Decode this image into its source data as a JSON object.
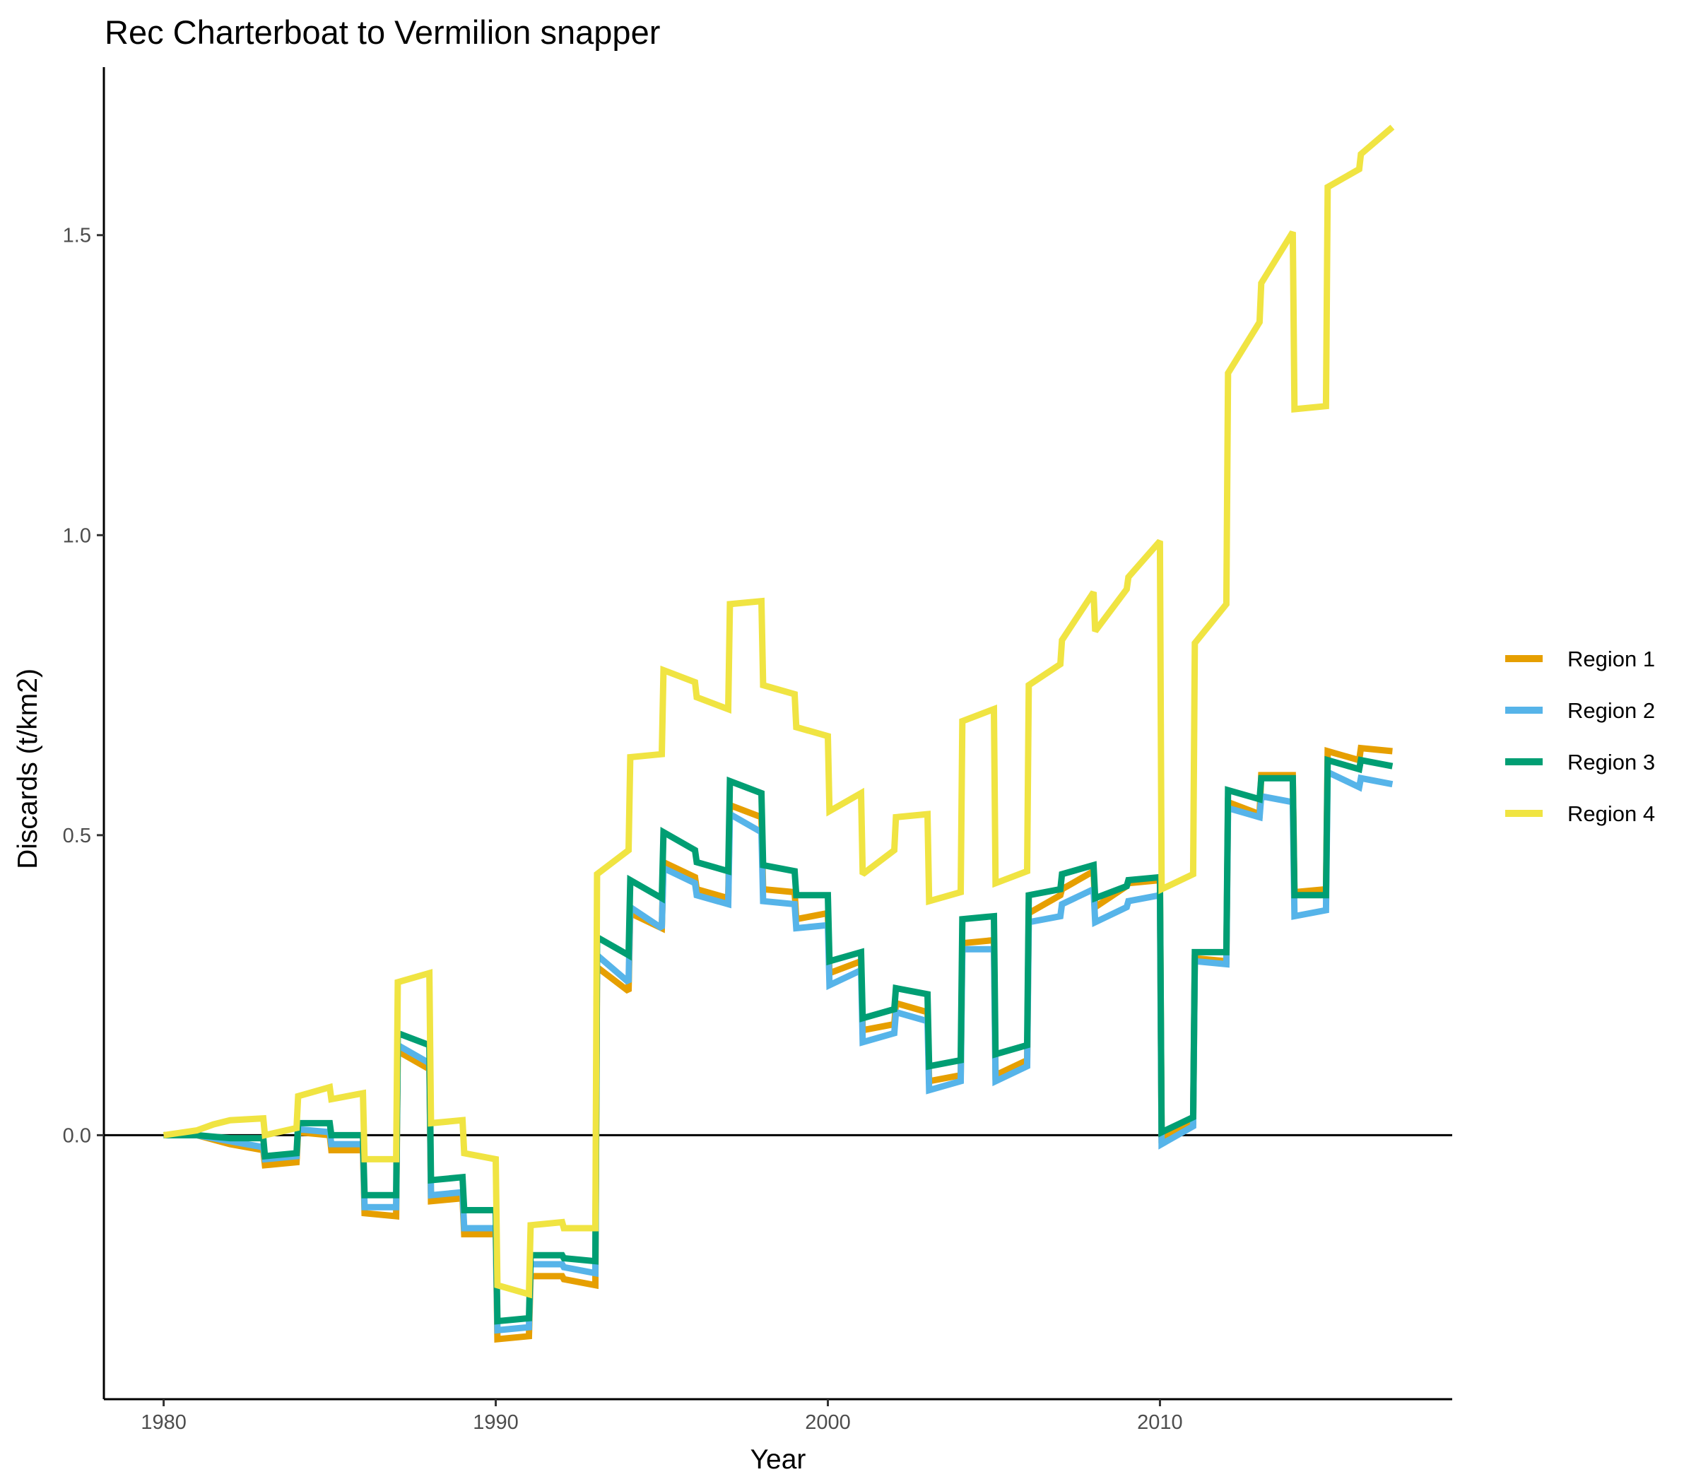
{
  "chart_data": {
    "type": "line",
    "title": "Rec Charterboat to Vermilion snapper",
    "xlabel": "Year",
    "ylabel": "Discards (t/km2)",
    "xlim": [
      1978.2,
      2018.8
    ],
    "ylim": [
      -0.44,
      1.78
    ],
    "x_ticks": [
      1980,
      1990,
      2000,
      2010
    ],
    "x_tick_labels": [
      "1980",
      "1990",
      "2000",
      "2010"
    ],
    "y_ticks": [
      0.0,
      0.5,
      1.0,
      1.5
    ],
    "y_tick_labels": [
      "0.0",
      "0.5",
      "1.0",
      "1.5"
    ],
    "zero_line": true,
    "grid": false,
    "legend_position": "right",
    "series": [
      {
        "name": "Region 1",
        "color": "#E69F00",
        "points": [
          [
            1980.0,
            0.0
          ],
          [
            1981.0,
            0.0
          ],
          [
            1982.0,
            -0.015
          ],
          [
            1983.0,
            -0.025
          ],
          [
            1983.05,
            -0.05
          ],
          [
            1984.0,
            -0.045
          ],
          [
            1984.05,
            0.005
          ],
          [
            1985.0,
            0.0
          ],
          [
            1985.05,
            -0.025
          ],
          [
            1986.0,
            -0.025
          ],
          [
            1986.05,
            -0.13
          ],
          [
            1987.0,
            -0.135
          ],
          [
            1987.05,
            0.14
          ],
          [
            1988.0,
            0.11
          ],
          [
            1988.05,
            -0.11
          ],
          [
            1989.0,
            -0.105
          ],
          [
            1989.05,
            -0.165
          ],
          [
            1990.0,
            -0.165
          ],
          [
            1990.05,
            -0.34
          ],
          [
            1991.0,
            -0.335
          ],
          [
            1991.05,
            -0.235
          ],
          [
            1992.0,
            -0.235
          ],
          [
            1992.05,
            -0.24
          ],
          [
            1993.0,
            -0.25
          ],
          [
            1993.05,
            0.28
          ],
          [
            1994.0,
            0.24
          ],
          [
            1994.05,
            0.37
          ],
          [
            1995.0,
            0.345
          ],
          [
            1995.05,
            0.455
          ],
          [
            1996.0,
            0.43
          ],
          [
            1996.05,
            0.41
          ],
          [
            1997.0,
            0.395
          ],
          [
            1997.05,
            0.55
          ],
          [
            1998.0,
            0.53
          ],
          [
            1998.05,
            0.41
          ],
          [
            1999.0,
            0.405
          ],
          [
            1999.05,
            0.36
          ],
          [
            2000.0,
            0.37
          ],
          [
            2000.05,
            0.27
          ],
          [
            2001.0,
            0.29
          ],
          [
            2001.05,
            0.175
          ],
          [
            2002.0,
            0.185
          ],
          [
            2002.05,
            0.22
          ],
          [
            2003.0,
            0.205
          ],
          [
            2003.05,
            0.09
          ],
          [
            2004.0,
            0.1
          ],
          [
            2004.05,
            0.32
          ],
          [
            2005.0,
            0.325
          ],
          [
            2005.05,
            0.1
          ],
          [
            2006.0,
            0.125
          ],
          [
            2006.05,
            0.37
          ],
          [
            2007.0,
            0.4
          ],
          [
            2007.05,
            0.41
          ],
          [
            2008.0,
            0.44
          ],
          [
            2008.05,
            0.38
          ],
          [
            2009.0,
            0.415
          ],
          [
            2009.05,
            0.42
          ],
          [
            2010.0,
            0.425
          ],
          [
            2010.05,
            -0.005
          ],
          [
            2011.0,
            0.02
          ],
          [
            2011.05,
            0.295
          ],
          [
            2012.0,
            0.29
          ],
          [
            2012.05,
            0.555
          ],
          [
            2013.0,
            0.535
          ],
          [
            2013.05,
            0.6
          ],
          [
            2014.0,
            0.6
          ],
          [
            2014.05,
            0.405
          ],
          [
            2015.0,
            0.41
          ],
          [
            2015.05,
            0.64
          ],
          [
            2016.0,
            0.625
          ],
          [
            2016.05,
            0.645
          ],
          [
            2017.0,
            0.64
          ]
        ]
      },
      {
        "name": "Region 2",
        "color": "#56B4E9",
        "points": [
          [
            1980.0,
            0.0
          ],
          [
            1981.0,
            0.0
          ],
          [
            1982.0,
            -0.01
          ],
          [
            1983.0,
            -0.02
          ],
          [
            1983.05,
            -0.04
          ],
          [
            1984.0,
            -0.035
          ],
          [
            1984.05,
            0.01
          ],
          [
            1985.0,
            0.005
          ],
          [
            1985.05,
            -0.015
          ],
          [
            1986.0,
            -0.015
          ],
          [
            1986.05,
            -0.12
          ],
          [
            1987.0,
            -0.12
          ],
          [
            1987.05,
            0.15
          ],
          [
            1988.0,
            0.12
          ],
          [
            1988.05,
            -0.1
          ],
          [
            1989.0,
            -0.095
          ],
          [
            1989.05,
            -0.155
          ],
          [
            1990.0,
            -0.155
          ],
          [
            1990.05,
            -0.325
          ],
          [
            1991.0,
            -0.32
          ],
          [
            1991.05,
            -0.215
          ],
          [
            1992.0,
            -0.215
          ],
          [
            1992.05,
            -0.22
          ],
          [
            1993.0,
            -0.23
          ],
          [
            1993.05,
            0.3
          ],
          [
            1994.0,
            0.255
          ],
          [
            1994.05,
            0.38
          ],
          [
            1995.0,
            0.345
          ],
          [
            1995.05,
            0.445
          ],
          [
            1996.0,
            0.42
          ],
          [
            1996.05,
            0.4
          ],
          [
            1997.0,
            0.385
          ],
          [
            1997.05,
            0.535
          ],
          [
            1998.0,
            0.505
          ],
          [
            1998.05,
            0.39
          ],
          [
            1999.0,
            0.385
          ],
          [
            1999.05,
            0.345
          ],
          [
            2000.0,
            0.35
          ],
          [
            2000.05,
            0.25
          ],
          [
            2001.0,
            0.275
          ],
          [
            2001.05,
            0.155
          ],
          [
            2002.0,
            0.17
          ],
          [
            2002.05,
            0.205
          ],
          [
            2003.0,
            0.19
          ],
          [
            2003.05,
            0.075
          ],
          [
            2004.0,
            0.09
          ],
          [
            2004.05,
            0.31
          ],
          [
            2005.0,
            0.31
          ],
          [
            2005.05,
            0.09
          ],
          [
            2006.0,
            0.115
          ],
          [
            2006.05,
            0.355
          ],
          [
            2007.0,
            0.365
          ],
          [
            2007.05,
            0.385
          ],
          [
            2008.0,
            0.41
          ],
          [
            2008.05,
            0.355
          ],
          [
            2009.0,
            0.38
          ],
          [
            2009.05,
            0.39
          ],
          [
            2010.0,
            0.4
          ],
          [
            2010.05,
            -0.015
          ],
          [
            2011.0,
            0.015
          ],
          [
            2011.05,
            0.29
          ],
          [
            2012.0,
            0.285
          ],
          [
            2012.05,
            0.545
          ],
          [
            2013.0,
            0.53
          ],
          [
            2013.05,
            0.565
          ],
          [
            2014.0,
            0.555
          ],
          [
            2014.05,
            0.365
          ],
          [
            2015.0,
            0.375
          ],
          [
            2015.05,
            0.605
          ],
          [
            2016.0,
            0.58
          ],
          [
            2016.05,
            0.595
          ],
          [
            2017.0,
            0.585
          ]
        ]
      },
      {
        "name": "Region 3",
        "color": "#009E73",
        "points": [
          [
            1980.0,
            0.0
          ],
          [
            1981.0,
            0.0
          ],
          [
            1982.0,
            -0.005
          ],
          [
            1983.0,
            -0.005
          ],
          [
            1983.05,
            -0.035
          ],
          [
            1984.0,
            -0.03
          ],
          [
            1984.05,
            0.02
          ],
          [
            1985.0,
            0.02
          ],
          [
            1985.05,
            0.0
          ],
          [
            1986.0,
            0.0
          ],
          [
            1986.05,
            -0.1
          ],
          [
            1987.0,
            -0.1
          ],
          [
            1987.05,
            0.17
          ],
          [
            1988.0,
            0.15
          ],
          [
            1988.05,
            -0.075
          ],
          [
            1989.0,
            -0.07
          ],
          [
            1989.05,
            -0.125
          ],
          [
            1990.0,
            -0.125
          ],
          [
            1990.05,
            -0.31
          ],
          [
            1991.0,
            -0.305
          ],
          [
            1991.05,
            -0.2
          ],
          [
            1992.0,
            -0.2
          ],
          [
            1992.05,
            -0.205
          ],
          [
            1993.0,
            -0.21
          ],
          [
            1993.05,
            0.33
          ],
          [
            1994.0,
            0.3
          ],
          [
            1994.05,
            0.425
          ],
          [
            1995.0,
            0.395
          ],
          [
            1995.05,
            0.505
          ],
          [
            1996.0,
            0.475
          ],
          [
            1996.05,
            0.455
          ],
          [
            1997.0,
            0.44
          ],
          [
            1997.05,
            0.59
          ],
          [
            1998.0,
            0.57
          ],
          [
            1998.05,
            0.45
          ],
          [
            1999.0,
            0.44
          ],
          [
            1999.05,
            0.4
          ],
          [
            2000.0,
            0.4
          ],
          [
            2000.05,
            0.29
          ],
          [
            2001.0,
            0.305
          ],
          [
            2001.05,
            0.195
          ],
          [
            2002.0,
            0.21
          ],
          [
            2002.05,
            0.245
          ],
          [
            2003.0,
            0.235
          ],
          [
            2003.05,
            0.115
          ],
          [
            2004.0,
            0.125
          ],
          [
            2004.05,
            0.36
          ],
          [
            2005.0,
            0.365
          ],
          [
            2005.05,
            0.135
          ],
          [
            2006.0,
            0.15
          ],
          [
            2006.05,
            0.4
          ],
          [
            2007.0,
            0.41
          ],
          [
            2007.05,
            0.435
          ],
          [
            2008.0,
            0.45
          ],
          [
            2008.05,
            0.395
          ],
          [
            2009.0,
            0.415
          ],
          [
            2009.05,
            0.425
          ],
          [
            2010.0,
            0.43
          ],
          [
            2010.05,
            0.005
          ],
          [
            2011.0,
            0.03
          ],
          [
            2011.05,
            0.305
          ],
          [
            2012.0,
            0.305
          ],
          [
            2012.05,
            0.575
          ],
          [
            2013.0,
            0.56
          ],
          [
            2013.05,
            0.595
          ],
          [
            2014.0,
            0.595
          ],
          [
            2014.05,
            0.4
          ],
          [
            2015.0,
            0.4
          ],
          [
            2015.05,
            0.625
          ],
          [
            2016.0,
            0.61
          ],
          [
            2016.05,
            0.625
          ],
          [
            2017.0,
            0.615
          ]
        ]
      },
      {
        "name": "Region 4",
        "color": "#F0E442",
        "points": [
          [
            1980.0,
            0.0
          ],
          [
            1981.0,
            0.008
          ],
          [
            1981.5,
            0.018
          ],
          [
            1982.0,
            0.025
          ],
          [
            1983.0,
            0.028
          ],
          [
            1983.05,
            0.0
          ],
          [
            1984.0,
            0.012
          ],
          [
            1984.05,
            0.065
          ],
          [
            1985.0,
            0.08
          ],
          [
            1985.05,
            0.06
          ],
          [
            1986.0,
            0.07
          ],
          [
            1986.05,
            -0.04
          ],
          [
            1987.0,
            -0.04
          ],
          [
            1987.05,
            0.255
          ],
          [
            1988.0,
            0.27
          ],
          [
            1988.05,
            0.02
          ],
          [
            1989.0,
            0.025
          ],
          [
            1989.05,
            -0.03
          ],
          [
            1990.0,
            -0.04
          ],
          [
            1990.05,
            -0.25
          ],
          [
            1991.0,
            -0.265
          ],
          [
            1991.05,
            -0.15
          ],
          [
            1992.0,
            -0.145
          ],
          [
            1992.05,
            -0.155
          ],
          [
            1993.0,
            -0.155
          ],
          [
            1993.05,
            0.435
          ],
          [
            1994.0,
            0.475
          ],
          [
            1994.05,
            0.63
          ],
          [
            1995.0,
            0.635
          ],
          [
            1995.05,
            0.775
          ],
          [
            1996.0,
            0.755
          ],
          [
            1996.05,
            0.73
          ],
          [
            1997.0,
            0.71
          ],
          [
            1997.05,
            0.885
          ],
          [
            1998.0,
            0.89
          ],
          [
            1998.05,
            0.75
          ],
          [
            1999.0,
            0.735
          ],
          [
            1999.05,
            0.68
          ],
          [
            2000.0,
            0.665
          ],
          [
            2000.05,
            0.54
          ],
          [
            2001.0,
            0.57
          ],
          [
            2001.05,
            0.435
          ],
          [
            2002.0,
            0.475
          ],
          [
            2002.05,
            0.53
          ],
          [
            2003.0,
            0.535
          ],
          [
            2003.05,
            0.39
          ],
          [
            2004.0,
            0.405
          ],
          [
            2004.05,
            0.69
          ],
          [
            2005.0,
            0.71
          ],
          [
            2005.05,
            0.42
          ],
          [
            2006.0,
            0.44
          ],
          [
            2006.05,
            0.75
          ],
          [
            2007.0,
            0.785
          ],
          [
            2007.05,
            0.825
          ],
          [
            2008.0,
            0.905
          ],
          [
            2008.05,
            0.84
          ],
          [
            2009.0,
            0.91
          ],
          [
            2009.05,
            0.93
          ],
          [
            2010.0,
            0.99
          ],
          [
            2010.05,
            0.41
          ],
          [
            2011.0,
            0.435
          ],
          [
            2011.05,
            0.82
          ],
          [
            2012.0,
            0.885
          ],
          [
            2012.05,
            1.27
          ],
          [
            2013.0,
            1.355
          ],
          [
            2013.05,
            1.42
          ],
          [
            2014.0,
            1.505
          ],
          [
            2014.05,
            1.21
          ],
          [
            2015.0,
            1.215
          ],
          [
            2015.05,
            1.58
          ],
          [
            2016.0,
            1.61
          ],
          [
            2016.05,
            1.635
          ],
          [
            2017.0,
            1.68
          ]
        ]
      }
    ]
  }
}
